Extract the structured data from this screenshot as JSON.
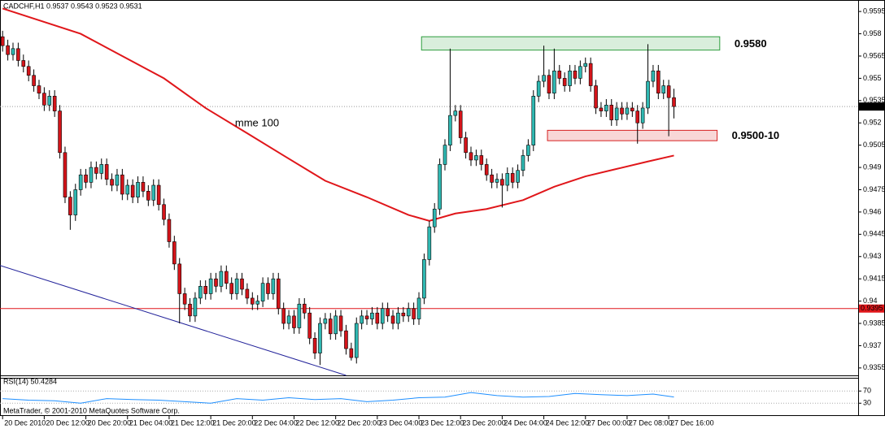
{
  "chart_data": {
    "type": "candlestick",
    "title": "CADCHF,H1  0.9537 0.9543 0.9523 0.9531",
    "footer": "MetaTrader, © 2001-2010 MetaQuotes Software Corp.",
    "up_color": "#2fb8b2",
    "down_color": "#d4141a",
    "open": [
      0.9578,
      0.9572,
      0.9566,
      0.957,
      0.9562,
      0.9558,
      0.9552,
      0.9545,
      0.954,
      0.9532,
      0.9538,
      0.9528,
      0.95,
      0.947,
      0.9458,
      0.9475,
      0.9485,
      0.948,
      0.949,
      0.9486,
      0.9492,
      0.9482,
      0.9478,
      0.9485,
      0.9472,
      0.9478,
      0.947,
      0.948,
      0.9474,
      0.9468,
      0.9478,
      0.9465,
      0.9455,
      0.944,
      0.9425,
      0.9405,
      0.9398,
      0.939,
      0.9402,
      0.941,
      0.9405,
      0.9415,
      0.941,
      0.942,
      0.9412,
      0.9405,
      0.9415,
      0.9408,
      0.9402,
      0.9398,
      0.94,
      0.9412,
      0.9405,
      0.9415,
      0.9395,
      0.9385,
      0.939,
      0.9382,
      0.9398,
      0.9392,
      0.9375,
      0.9365,
      0.9385,
      0.9388,
      0.9378,
      0.939,
      0.938,
      0.9368,
      0.9362,
      0.9385,
      0.939,
      0.9388,
      0.9392,
      0.9385,
      0.9395,
      0.939,
      0.9385,
      0.9392,
      0.939,
      0.9395,
      0.9388,
      0.9402,
      0.9428,
      0.945,
      0.9462,
      0.9492,
      0.9505,
      0.9525,
      0.9528,
      0.951,
      0.95,
      0.9495,
      0.9498,
      0.9492,
      0.9485,
      0.948,
      0.9482,
      0.9478,
      0.9486,
      0.948,
      0.9488,
      0.9498,
      0.9505,
      0.9538,
      0.9548,
      0.9552,
      0.954,
      0.9555,
      0.955,
      0.9545,
      0.9555,
      0.955,
      0.9558,
      0.956,
      0.9545,
      0.953,
      0.9528,
      0.9532,
      0.9522,
      0.953,
      0.9526,
      0.953,
      0.9528,
      0.952,
      0.953,
      0.9548,
      0.9555,
      0.954,
      0.9545,
      0.9537
    ],
    "high": [
      0.9582,
      0.9576,
      0.9574,
      0.9574,
      0.9566,
      0.9562,
      0.9556,
      0.9549,
      0.9544,
      0.9542,
      0.9542,
      0.9532,
      0.9504,
      0.9474,
      0.9479,
      0.9489,
      0.9489,
      0.9494,
      0.9494,
      0.9496,
      0.9496,
      0.9486,
      0.9489,
      0.9489,
      0.9482,
      0.9482,
      0.9484,
      0.9484,
      0.9478,
      0.9482,
      0.9482,
      0.9469,
      0.9459,
      0.9444,
      0.9429,
      0.9409,
      0.9402,
      0.9406,
      0.9414,
      0.9414,
      0.9419,
      0.9419,
      0.9424,
      0.9424,
      0.9416,
      0.9419,
      0.9419,
      0.9412,
      0.9406,
      0.9404,
      0.9416,
      0.9416,
      0.9419,
      0.9419,
      0.9399,
      0.9394,
      0.9394,
      0.9402,
      0.9402,
      0.9396,
      0.9379,
      0.9389,
      0.9392,
      0.9392,
      0.9394,
      0.9394,
      0.9384,
      0.9372,
      0.9389,
      0.9394,
      0.9394,
      0.9396,
      0.9396,
      0.9399,
      0.9399,
      0.9394,
      0.9396,
      0.9396,
      0.9399,
      0.9399,
      0.9406,
      0.9432,
      0.9454,
      0.9466,
      0.9496,
      0.9509,
      0.957,
      0.9532,
      0.9532,
      0.9514,
      0.9504,
      0.9502,
      0.9502,
      0.9496,
      0.9489,
      0.9486,
      0.9486,
      0.949,
      0.949,
      0.9492,
      0.9502,
      0.9509,
      0.9542,
      0.9552,
      0.9572,
      0.9556,
      0.957,
      0.9559,
      0.9554,
      0.9559,
      0.9559,
      0.9562,
      0.9564,
      0.9564,
      0.9549,
      0.9534,
      0.9536,
      0.9536,
      0.9534,
      0.9534,
      0.9534,
      0.9534,
      0.9532,
      0.9534,
      0.9573,
      0.9559,
      0.9559,
      0.9549,
      0.9549,
      0.9543
    ],
    "low": [
      0.9568,
      0.9562,
      0.9562,
      0.9558,
      0.9554,
      0.9548,
      0.9541,
      0.9536,
      0.9528,
      0.9528,
      0.9524,
      0.9496,
      0.9466,
      0.9448,
      0.9454,
      0.9471,
      0.9476,
      0.9476,
      0.9482,
      0.9482,
      0.9478,
      0.9474,
      0.9474,
      0.9468,
      0.9468,
      0.9466,
      0.9466,
      0.947,
      0.9464,
      0.9464,
      0.9461,
      0.9451,
      0.9436,
      0.9421,
      0.9385,
      0.9394,
      0.9386,
      0.9386,
      0.9398,
      0.9401,
      0.9401,
      0.9406,
      0.9406,
      0.9408,
      0.9401,
      0.9401,
      0.9404,
      0.9398,
      0.9394,
      0.9394,
      0.9396,
      0.9401,
      0.9401,
      0.9391,
      0.9381,
      0.9381,
      0.9378,
      0.9378,
      0.9388,
      0.9371,
      0.9361,
      0.9357,
      0.9381,
      0.9374,
      0.9374,
      0.9376,
      0.9364,
      0.936,
      0.9358,
      0.9381,
      0.9384,
      0.9384,
      0.9381,
      0.9381,
      0.9386,
      0.9381,
      0.9381,
      0.9386,
      0.9386,
      0.9384,
      0.9384,
      0.9398,
      0.9424,
      0.9446,
      0.9458,
      0.9488,
      0.9501,
      0.9521,
      0.9506,
      0.9496,
      0.9491,
      0.9491,
      0.9488,
      0.9481,
      0.9476,
      0.9476,
      0.9463,
      0.9474,
      0.9476,
      0.9476,
      0.9484,
      0.9494,
      0.9501,
      0.9534,
      0.9544,
      0.9536,
      0.9536,
      0.9546,
      0.9541,
      0.9541,
      0.9546,
      0.9546,
      0.9554,
      0.9541,
      0.9526,
      0.9524,
      0.9524,
      0.9518,
      0.9518,
      0.9522,
      0.9522,
      0.9524,
      0.9506,
      0.9516,
      0.9526,
      0.9544,
      0.9536,
      0.9536,
      0.9511,
      0.9523
    ],
    "close": [
      0.9572,
      0.9566,
      0.957,
      0.9562,
      0.9558,
      0.9552,
      0.9545,
      0.954,
      0.9532,
      0.9538,
      0.9528,
      0.95,
      0.947,
      0.9458,
      0.9475,
      0.9485,
      0.948,
      0.949,
      0.9486,
      0.9492,
      0.9482,
      0.9478,
      0.9485,
      0.9472,
      0.9478,
      0.947,
      0.948,
      0.9474,
      0.9468,
      0.9478,
      0.9465,
      0.9455,
      0.944,
      0.9425,
      0.9405,
      0.9398,
      0.939,
      0.9402,
      0.941,
      0.9405,
      0.9415,
      0.941,
      0.942,
      0.9412,
      0.9405,
      0.9415,
      0.9408,
      0.9402,
      0.9398,
      0.94,
      0.9412,
      0.9405,
      0.9415,
      0.9395,
      0.9385,
      0.939,
      0.9382,
      0.9398,
      0.9392,
      0.9375,
      0.9365,
      0.9385,
      0.9388,
      0.9378,
      0.939,
      0.938,
      0.9368,
      0.9362,
      0.9385,
      0.939,
      0.9388,
      0.9392,
      0.9385,
      0.9395,
      0.939,
      0.9385,
      0.9392,
      0.939,
      0.9395,
      0.9388,
      0.9402,
      0.9428,
      0.945,
      0.9462,
      0.9492,
      0.9505,
      0.9525,
      0.9528,
      0.951,
      0.95,
      0.9495,
      0.9498,
      0.9492,
      0.9485,
      0.948,
      0.9482,
      0.9478,
      0.9486,
      0.948,
      0.9488,
      0.9498,
      0.9505,
      0.9538,
      0.9548,
      0.9552,
      0.954,
      0.9555,
      0.955,
      0.9545,
      0.9555,
      0.955,
      0.9558,
      0.956,
      0.9545,
      0.953,
      0.9528,
      0.9532,
      0.9522,
      0.953,
      0.9526,
      0.953,
      0.9528,
      0.952,
      0.953,
      0.9548,
      0.9555,
      0.954,
      0.9545,
      0.9537,
      0.9531
    ],
    "xlim": [
      -0.5,
      164.4
    ],
    "xticks": [
      {
        "value": 0,
        "label": "20 Dec 2010"
      },
      {
        "value": 8,
        "label": "20 Dec 12:00"
      },
      {
        "value": 16,
        "label": "20 Dec 20:00"
      },
      {
        "value": 24,
        "label": "21 Dec 04:00"
      },
      {
        "value": 32,
        "label": "21 Dec 12:00"
      },
      {
        "value": 40,
        "label": "21 Dec 20:00"
      },
      {
        "value": 48,
        "label": "22 Dec 04:00"
      },
      {
        "value": 56,
        "label": "22 Dec 12:00"
      },
      {
        "value": 64,
        "label": "22 Dec 20:00"
      },
      {
        "value": 72,
        "label": "23 Dec 04:00"
      },
      {
        "value": 80,
        "label": "23 Dec 12:00"
      },
      {
        "value": 88,
        "label": "23 Dec 20:00"
      },
      {
        "value": 96,
        "label": "24 Dec 04:00"
      },
      {
        "value": 104,
        "label": "24 Dec 12:00"
      },
      {
        "value": 112,
        "label": "27 Dec 00:00"
      },
      {
        "value": 120,
        "label": "27 Dec 08:00"
      },
      {
        "value": 128,
        "label": "27 Dec 16:00"
      }
    ],
    "ylim": [
      0.935,
      0.96
    ],
    "yticks": [
      0.9595,
      0.958,
      0.9565,
      0.955,
      0.9535,
      0.952,
      0.9505,
      0.949,
      0.9475,
      0.946,
      0.9445,
      0.943,
      0.9415,
      0.94,
      0.9385,
      0.937,
      0.9355
    ],
    "ma": {
      "name": "mme 100",
      "color": "#e0161a",
      "x": [
        0,
        15,
        31,
        39,
        47,
        54,
        62,
        70,
        78,
        82,
        87,
        93,
        100,
        106,
        112,
        118,
        124,
        129
      ],
      "values": [
        0.9597,
        0.958,
        0.955,
        0.953,
        0.9513,
        0.9498,
        0.9481,
        0.947,
        0.9458,
        0.9454,
        0.9459,
        0.9462,
        0.9468,
        0.9477,
        0.9484,
        0.9489,
        0.9494,
        0.9498
      ]
    },
    "hline": {
      "value": 0.9395,
      "color": "#e0161a"
    },
    "trendline": {
      "color": "#22229a",
      "x": [
        -0.5,
        66
      ],
      "values": [
        0.9424,
        0.935
      ]
    },
    "zones": [
      {
        "label": "0.9580",
        "color": "#2e9e3e",
        "x": [
          80.5,
          137.8
        ],
        "range": [
          0.9569,
          0.9578
        ]
      },
      {
        "label": "0.9500-10",
        "color": "#d62020",
        "x": [
          104.7,
          137.3
        ],
        "range": [
          0.9508,
          0.9515
        ]
      }
    ],
    "rsi": {
      "title": "RSI(14) 50.4284",
      "color": "#1e8fff",
      "ylim": [
        0,
        100
      ],
      "yticks": [
        70,
        30
      ],
      "x": [
        0,
        5,
        10,
        15,
        20,
        25,
        30,
        35,
        40,
        45,
        50,
        55,
        60,
        65,
        70,
        75,
        80,
        85,
        90,
        95,
        100,
        105,
        110,
        115,
        120,
        125,
        129
      ],
      "values": [
        45,
        40,
        38,
        30,
        45,
        42,
        40,
        35,
        30,
        45,
        40,
        48,
        42,
        45,
        35,
        40,
        48,
        50,
        65,
        55,
        50,
        52,
        62,
        58,
        55,
        60,
        50.4284
      ]
    }
  }
}
